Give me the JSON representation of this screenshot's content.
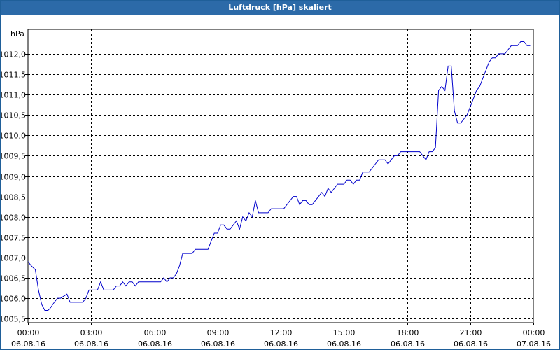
{
  "window": {
    "title": "Luftdruck [hPa] skaliert"
  },
  "colors": {
    "titlebar": "#2c6aa8",
    "line": "#0000cc",
    "grid": "#000000"
  },
  "chart_data": {
    "type": "line",
    "title": "Luftdruck [hPa] skaliert",
    "ylabel": "hPa",
    "xlabel": "",
    "grid": true,
    "legend": "none",
    "xlim": [
      0,
      24
    ],
    "ylim": [
      1005.4,
      1012.6
    ],
    "y_ticks": [
      1005.5,
      1006.0,
      1006.5,
      1007.0,
      1007.5,
      1008.0,
      1008.5,
      1009.0,
      1009.5,
      1010.0,
      1010.5,
      1011.0,
      1011.5,
      1012.0
    ],
    "y_tick_labels": [
      "1005,5",
      "1006,0",
      "1006,5",
      "1007,0",
      "1007,5",
      "1008,0",
      "1008,5",
      "1009,0",
      "1009,5",
      "1010,0",
      "1010,5",
      "1011,0",
      "1011,5",
      "1012,0"
    ],
    "x_ticks": [
      0,
      3,
      6,
      9,
      12,
      15,
      18,
      21,
      24
    ],
    "x_tick_times": [
      "00:00",
      "03:00",
      "06:00",
      "09:00",
      "12:00",
      "15:00",
      "18:00",
      "21:00",
      "00:00"
    ],
    "x_tick_dates": [
      "06.08.16",
      "06.08.16",
      "06.08.16",
      "06.08.16",
      "06.08.16",
      "06.08.16",
      "06.08.16",
      "06.08.16",
      "07.08.16"
    ],
    "series": [
      {
        "x": [
          0,
          0.15,
          0.35,
          0.5,
          0.65,
          0.8,
          0.95,
          1.05,
          1.25,
          1.4,
          1.55,
          1.7,
          1.85,
          2.0,
          2.15,
          2.3,
          2.45,
          2.6,
          2.75,
          2.9,
          3.0,
          3.15,
          3.3,
          3.45,
          3.6,
          3.75,
          3.9,
          4.05,
          4.2,
          4.35,
          4.5,
          4.65,
          4.8,
          4.95,
          5.1,
          5.25,
          5.4,
          5.55,
          5.7,
          5.85,
          6.0,
          6.15,
          6.3,
          6.45,
          6.6,
          6.75,
          6.9,
          7.05,
          7.2,
          7.35,
          7.5,
          7.65,
          7.8,
          7.95,
          8.1,
          8.25,
          8.4,
          8.55,
          8.7,
          8.85,
          9.0,
          9.15,
          9.3,
          9.45,
          9.6,
          9.75,
          9.9,
          10.05,
          10.2,
          10.35,
          10.5,
          10.65,
          10.8,
          10.95,
          11.1,
          11.25,
          11.4,
          11.55,
          11.7,
          11.85,
          12.0,
          12.15,
          12.3,
          12.45,
          12.6,
          12.75,
          12.9,
          13.05,
          13.2,
          13.35,
          13.5,
          13.65,
          13.8,
          13.95,
          14.1,
          14.25,
          14.4,
          14.55,
          14.7,
          14.85,
          15.0,
          15.15,
          15.3,
          15.45,
          15.6,
          15.75,
          15.9,
          16.05,
          16.2,
          16.35,
          16.5,
          16.65,
          16.8,
          16.95,
          17.1,
          17.25,
          17.4,
          17.55,
          17.7,
          17.85,
          18.0,
          18.15,
          18.3,
          18.45,
          18.6,
          18.75,
          18.9,
          19.05,
          19.2,
          19.35,
          19.5,
          19.65,
          19.8,
          19.95,
          20.1,
          20.25,
          20.4,
          20.55,
          20.7,
          20.85,
          21.0,
          21.15,
          21.3,
          21.45,
          21.6,
          21.75,
          21.9,
          22.05,
          22.2,
          22.35,
          22.5,
          22.65,
          22.8,
          22.95,
          23.1,
          23.25,
          23.4,
          23.55,
          23.7,
          23.85
        ],
        "y": [
          1006.9,
          1006.8,
          1006.7,
          1006.2,
          1005.85,
          1005.7,
          1005.7,
          1005.75,
          1005.9,
          1006.0,
          1006.0,
          1006.05,
          1006.1,
          1005.9,
          1005.9,
          1005.9,
          1005.9,
          1005.9,
          1006.0,
          1006.2,
          1006.2,
          1006.2,
          1006.2,
          1006.4,
          1006.2,
          1006.2,
          1006.2,
          1006.2,
          1006.3,
          1006.3,
          1006.4,
          1006.3,
          1006.4,
          1006.4,
          1006.3,
          1006.4,
          1006.4,
          1006.4,
          1006.4,
          1006.4,
          1006.4,
          1006.4,
          1006.4,
          1006.5,
          1006.4,
          1006.5,
          1006.5,
          1006.6,
          1006.8,
          1007.1,
          1007.1,
          1007.1,
          1007.1,
          1007.2,
          1007.2,
          1007.2,
          1007.2,
          1007.2,
          1007.4,
          1007.6,
          1007.6,
          1007.8,
          1007.8,
          1007.7,
          1007.7,
          1007.8,
          1007.9,
          1007.7,
          1008.0,
          1007.9,
          1008.1,
          1008.0,
          1008.4,
          1008.1,
          1008.1,
          1008.1,
          1008.1,
          1008.2,
          1008.2,
          1008.2,
          1008.2,
          1008.2,
          1008.3,
          1008.4,
          1008.5,
          1008.5,
          1008.3,
          1008.4,
          1008.4,
          1008.3,
          1008.3,
          1008.4,
          1008.5,
          1008.6,
          1008.5,
          1008.7,
          1008.6,
          1008.7,
          1008.8,
          1008.8,
          1008.8,
          1008.9,
          1008.9,
          1008.8,
          1008.9,
          1008.9,
          1009.1,
          1009.1,
          1009.1,
          1009.2,
          1009.3,
          1009.4,
          1009.4,
          1009.4,
          1009.3,
          1009.4,
          1009.5,
          1009.5,
          1009.6,
          1009.6,
          1009.6,
          1009.6,
          1009.6,
          1009.6,
          1009.6,
          1009.5,
          1009.4,
          1009.6,
          1009.6,
          1009.7,
          1011.1,
          1011.2,
          1011.1,
          1011.7,
          1011.7,
          1010.6,
          1010.3,
          1010.3,
          1010.4,
          1010.5,
          1010.7,
          1010.9,
          1011.1,
          1011.2,
          1011.4,
          1011.6,
          1011.8,
          1011.9,
          1011.9,
          1012.0,
          1012.0,
          1012.0,
          1012.1,
          1012.2,
          1012.2,
          1012.2,
          1012.3,
          1012.3,
          1012.2,
          1012.2
        ]
      }
    ]
  }
}
